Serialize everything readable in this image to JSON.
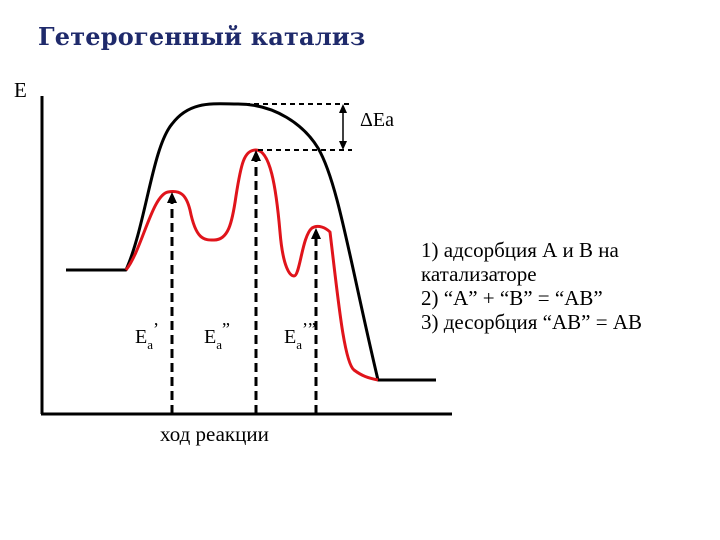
{
  "title": "Гетерогенный катализ",
  "axis": {
    "y_label": "E",
    "x_label": "ход реакции"
  },
  "delta_label": "ΔEa",
  "barriers": [
    {
      "base": "E",
      "sub": "a",
      "sup": "’"
    },
    {
      "base": "E",
      "sub": "a",
      "sup": "”"
    },
    {
      "base": "E",
      "sub": "a",
      "sup": "’”"
    }
  ],
  "notes": [
    "1) адсорбция А и В на",
    "катализаторе",
    "2) “А” + “В” = “АВ”",
    "3) десорбция “АВ” = АВ"
  ],
  "colors": {
    "uncatalyzed_curve": "#000000",
    "catalyzed_curve": "#e0141b",
    "title": "#1f2a6b"
  }
}
